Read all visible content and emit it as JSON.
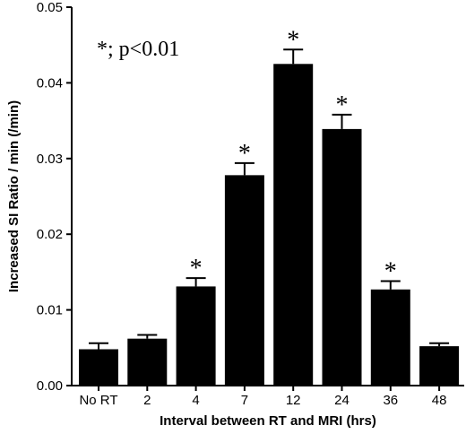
{
  "chart_data": {
    "type": "bar",
    "categories": [
      "No RT",
      "2",
      "4",
      "7",
      "12",
      "24",
      "36",
      "48"
    ],
    "values": [
      0.0048,
      0.0062,
      0.0131,
      0.0278,
      0.0425,
      0.0339,
      0.0127,
      0.0052
    ],
    "errors": [
      0.0008,
      0.0005,
      0.0011,
      0.0016,
      0.0019,
      0.0019,
      0.0011,
      0.0004
    ],
    "significant": [
      false,
      false,
      true,
      true,
      true,
      true,
      true,
      false
    ],
    "significance_marker": "*",
    "annotation": "*; p<0.01",
    "xlabel": "Interval between RT and MRI (hrs)",
    "ylabel": "Increased SI Ratio / min  (/min)",
    "ylim": [
      0,
      0.05
    ],
    "yticks": [
      0,
      0.01,
      0.02,
      0.03,
      0.04,
      0.05
    ],
    "ytick_labels": [
      "0.00",
      "0.01",
      "0.02",
      "0.03",
      "0.04",
      "0.05"
    ],
    "bar_color": "#000000",
    "grid": false
  }
}
